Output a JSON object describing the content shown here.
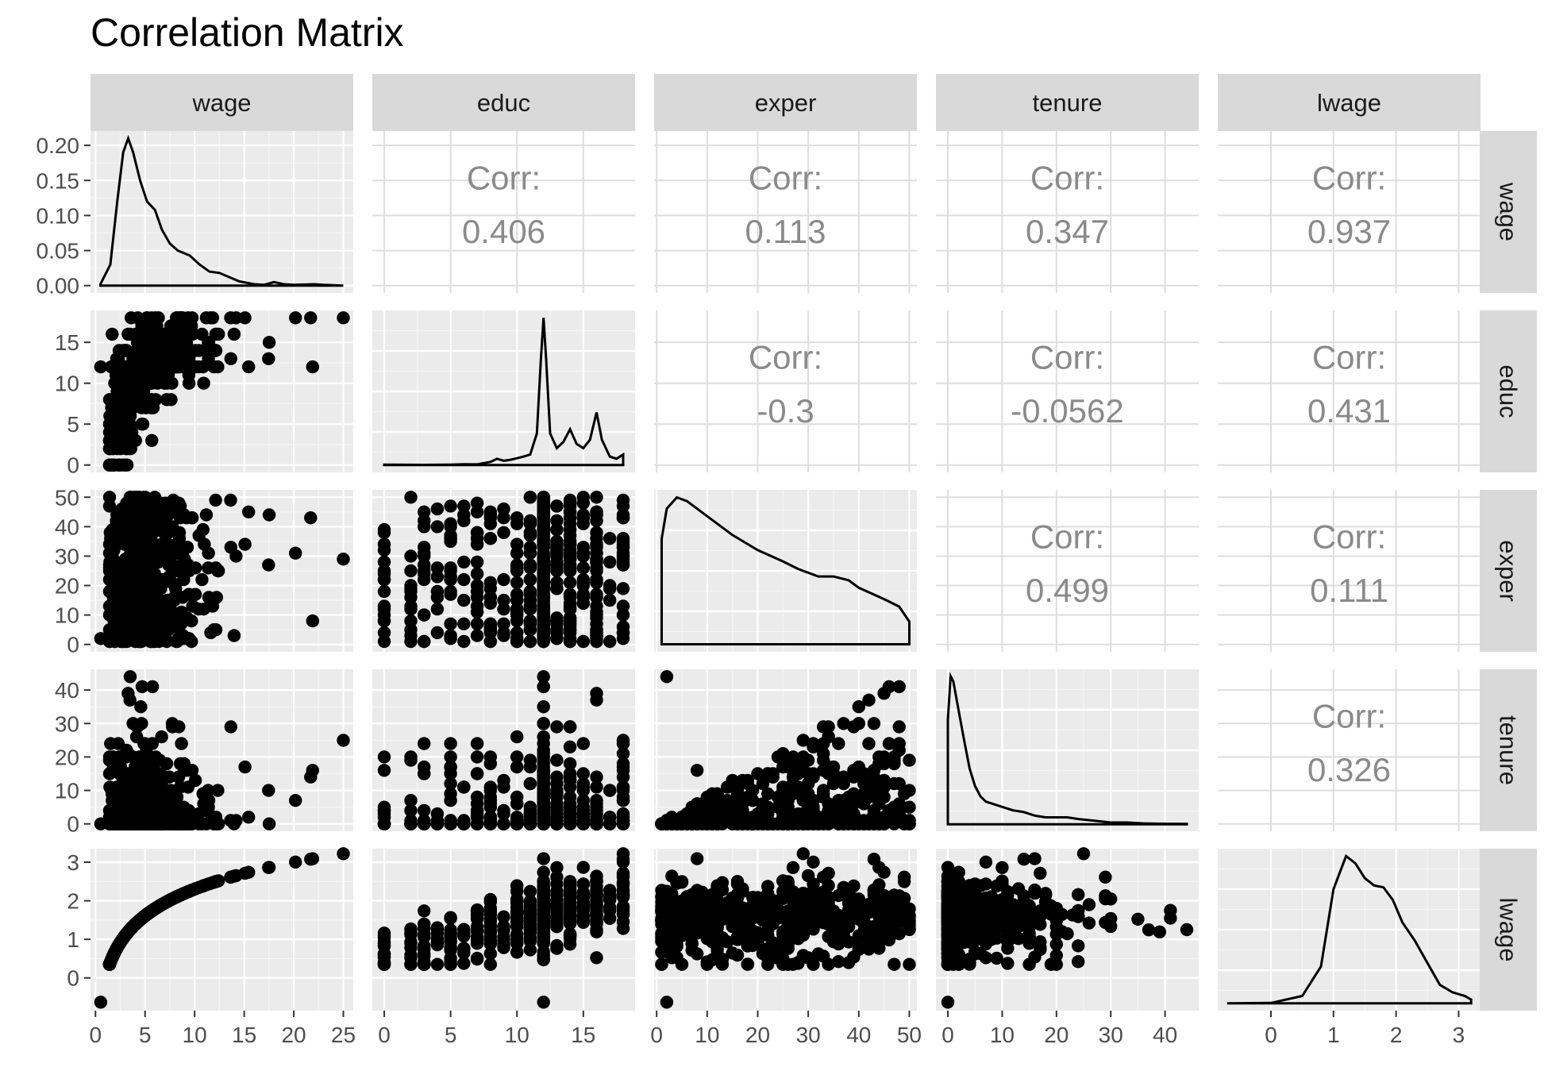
{
  "chart_data": {
    "type": "scatter-matrix",
    "title": "Correlation Matrix",
    "variables": [
      "wage",
      "educ",
      "exper",
      "tenure",
      "lwage"
    ],
    "corr_label": "Corr:",
    "correlations": [
      {
        "row": "wage",
        "col": "educ",
        "text": "0.406"
      },
      {
        "row": "wage",
        "col": "exper",
        "text": "0.113"
      },
      {
        "row": "wage",
        "col": "tenure",
        "text": "0.347"
      },
      {
        "row": "wage",
        "col": "lwage",
        "text": "0.937"
      },
      {
        "row": "educ",
        "col": "exper",
        "text": "-0.3"
      },
      {
        "row": "educ",
        "col": "tenure",
        "text": "-0.0562"
      },
      {
        "row": "educ",
        "col": "lwage",
        "text": "0.431"
      },
      {
        "row": "exper",
        "col": "tenure",
        "text": "0.499"
      },
      {
        "row": "exper",
        "col": "lwage",
        "text": "0.111"
      },
      {
        "row": "tenure",
        "col": "lwage",
        "text": "0.326"
      }
    ],
    "x_axes": {
      "wage": {
        "range": [
          -0.5,
          26
        ],
        "ticks": [
          0,
          5,
          10,
          15,
          20,
          25
        ],
        "labels": [
          "0",
          "5",
          "10",
          "15",
          "20",
          "25"
        ]
      },
      "educ": {
        "range": [
          -0.9,
          18.9
        ],
        "ticks": [
          0,
          5,
          10,
          15
        ],
        "labels": [
          "0",
          "5",
          "10",
          "15"
        ]
      },
      "exper": {
        "range": [
          -0.5,
          51.5
        ],
        "ticks": [
          0,
          10,
          20,
          30,
          40,
          50
        ],
        "labels": [
          "0",
          "10",
          "20",
          "30",
          "40",
          "50"
        ]
      },
      "tenure": {
        "range": [
          -2.2,
          46.2
        ],
        "ticks": [
          0,
          10,
          20,
          30,
          40
        ],
        "labels": [
          "0",
          "10",
          "20",
          "30",
          "40"
        ]
      },
      "lwage": {
        "range": [
          -0.85,
          3.35
        ],
        "ticks": [
          0,
          1,
          2,
          3
        ],
        "labels": [
          "0",
          "1",
          "2",
          "3"
        ]
      }
    },
    "y_axes": {
      "wage": {
        "range": [
          -0.0105,
          0.2205
        ],
        "ticks": [
          0,
          0.05,
          0.1,
          0.15,
          0.2
        ],
        "labels": [
          "0.00",
          "0.05",
          "0.10",
          "0.15",
          "0.20"
        ]
      },
      "educ": {
        "range": [
          -0.9,
          18.9
        ],
        "ticks": [
          0,
          5,
          10,
          15
        ],
        "labels": [
          "0",
          "5",
          "10",
          "15"
        ]
      },
      "exper": {
        "range": [
          -2.5,
          52.5
        ],
        "ticks": [
          0,
          10,
          20,
          30,
          40,
          50
        ],
        "labels": [
          "0",
          "10",
          "20",
          "30",
          "40",
          "50"
        ]
      },
      "tenure": {
        "range": [
          -2.2,
          46.2
        ],
        "ticks": [
          0,
          10,
          20,
          30,
          40
        ],
        "labels": [
          "0",
          "10",
          "20",
          "30",
          "40"
        ]
      },
      "lwage": {
        "range": [
          -0.85,
          3.35
        ],
        "ticks": [
          0,
          1,
          2,
          3
        ],
        "labels": [
          "0",
          "1",
          "2",
          "3"
        ]
      }
    },
    "densities": {
      "wage": [
        [
          0.5,
          0.002
        ],
        [
          1.5,
          0.03
        ],
        [
          2.2,
          0.12
        ],
        [
          2.8,
          0.19
        ],
        [
          3.3,
          0.21
        ],
        [
          3.8,
          0.19
        ],
        [
          4.5,
          0.15
        ],
        [
          5.2,
          0.12
        ],
        [
          6.0,
          0.108
        ],
        [
          6.7,
          0.08
        ],
        [
          7.5,
          0.06
        ],
        [
          8.3,
          0.05
        ],
        [
          9.5,
          0.043
        ],
        [
          10.5,
          0.03
        ],
        [
          11.5,
          0.02
        ],
        [
          12.5,
          0.018
        ],
        [
          13.5,
          0.012
        ],
        [
          14.5,
          0.006
        ],
        [
          16,
          0.002
        ],
        [
          17,
          0.001
        ],
        [
          18,
          0.005
        ],
        [
          19,
          0.002
        ],
        [
          20,
          0.001
        ],
        [
          22,
          0.002
        ],
        [
          23,
          0.001
        ],
        [
          25,
          0.0
        ]
      ],
      "educ": [
        [
          0,
          0.002
        ],
        [
          3,
          0.001
        ],
        [
          5,
          0.002
        ],
        [
          6,
          0.004
        ],
        [
          7,
          0.003
        ],
        [
          8,
          0.015
        ],
        [
          8.5,
          0.03
        ],
        [
          9,
          0.02
        ],
        [
          9.5,
          0.025
        ],
        [
          10,
          0.032
        ],
        [
          10.5,
          0.04
        ],
        [
          11,
          0.05
        ],
        [
          11.5,
          0.15
        ],
        [
          11.8,
          0.5
        ],
        [
          12,
          0.7
        ],
        [
          12.2,
          0.5
        ],
        [
          12.5,
          0.15
        ],
        [
          13,
          0.08
        ],
        [
          13.5,
          0.11
        ],
        [
          14,
          0.17
        ],
        [
          14.5,
          0.1
        ],
        [
          15,
          0.08
        ],
        [
          15.5,
          0.12
        ],
        [
          16,
          0.25
        ],
        [
          16.4,
          0.12
        ],
        [
          17,
          0.04
        ],
        [
          17.5,
          0.03
        ],
        [
          18,
          0.05
        ]
      ],
      "exper": [
        [
          1,
          0.028
        ],
        [
          2,
          0.036
        ],
        [
          4,
          0.039
        ],
        [
          6,
          0.038
        ],
        [
          10,
          0.034
        ],
        [
          15,
          0.029
        ],
        [
          20,
          0.025
        ],
        [
          25,
          0.022
        ],
        [
          28,
          0.02
        ],
        [
          30,
          0.019
        ],
        [
          32,
          0.018
        ],
        [
          35,
          0.018
        ],
        [
          38,
          0.017
        ],
        [
          40,
          0.015
        ],
        [
          45,
          0.012
        ],
        [
          48,
          0.01
        ],
        [
          50,
          0.006
        ]
      ],
      "tenure": [
        [
          0,
          0.06
        ],
        [
          0.5,
          0.085
        ],
        [
          1,
          0.082
        ],
        [
          2,
          0.065
        ],
        [
          3,
          0.048
        ],
        [
          4,
          0.032
        ],
        [
          5,
          0.022
        ],
        [
          6,
          0.016
        ],
        [
          7,
          0.013
        ],
        [
          8,
          0.012
        ],
        [
          10,
          0.01
        ],
        [
          12,
          0.008
        ],
        [
          14,
          0.007
        ],
        [
          16,
          0.005
        ],
        [
          18,
          0.004
        ],
        [
          20,
          0.004
        ],
        [
          22,
          0.004
        ],
        [
          24,
          0.003
        ],
        [
          27,
          0.002
        ],
        [
          30,
          0.001
        ],
        [
          33,
          0.001
        ],
        [
          36,
          0.0005
        ],
        [
          40,
          0.0003
        ],
        [
          44,
          0.0002
        ]
      ],
      "lwage": [
        [
          -0.7,
          0.0
        ],
        [
          0,
          0.002
        ],
        [
          0.5,
          0.04
        ],
        [
          0.8,
          0.2
        ],
        [
          1.0,
          0.62
        ],
        [
          1.2,
          0.8
        ],
        [
          1.35,
          0.76
        ],
        [
          1.5,
          0.68
        ],
        [
          1.65,
          0.64
        ],
        [
          1.8,
          0.63
        ],
        [
          1.95,
          0.56
        ],
        [
          2.1,
          0.44
        ],
        [
          2.3,
          0.34
        ],
        [
          2.5,
          0.22
        ],
        [
          2.7,
          0.1
        ],
        [
          2.9,
          0.06
        ],
        [
          3.1,
          0.04
        ],
        [
          3.2,
          0.02
        ]
      ]
    },
    "density_ranges": {
      "educ": [
        -0.035,
        0.735
      ],
      "exper": [
        -0.002,
        0.041
      ],
      "tenure": [
        -0.004,
        0.089
      ],
      "lwage": [
        -0.04,
        0.84
      ]
    }
  }
}
